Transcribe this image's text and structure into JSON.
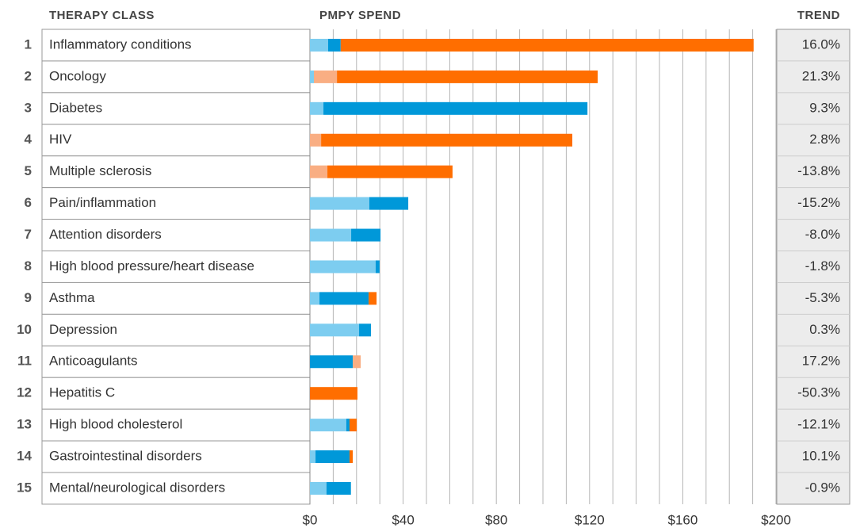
{
  "chart_data": {
    "type": "stacked_barh",
    "column_headers": [
      "THERAPY CLASS",
      "PMPY SPEND",
      "TREND"
    ],
    "ranks": [
      1,
      2,
      3,
      4,
      5,
      6,
      7,
      8,
      9,
      10,
      11,
      12,
      13,
      14,
      15
    ],
    "categories": [
      "Inflammatory conditions",
      "Oncology",
      "Diabetes",
      "HIV",
      "Multiple sclerosis",
      "Pain/inflammation",
      "Attention disorders",
      "High blood pressure/heart disease",
      "Asthma",
      "Depression",
      "Anticoagulants",
      "Hepatitis C",
      "High blood cholesterol",
      "Gastrointestinal disorders",
      "Mental/neurological disorders"
    ],
    "series": [
      {
        "color": "#7dcdf0",
        "values": [
          7.8,
          1.7,
          5.8,
          0,
          0,
          25.5,
          17.7,
          28.2,
          4.1,
          21.1,
          0,
          0,
          15.6,
          2.4,
          7.1
        ]
      },
      {
        "color": "#0098d9",
        "values": [
          5.4,
          0,
          113.3,
          0,
          0,
          16.7,
          12.6,
          1.7,
          21.1,
          5.1,
          18.4,
          0,
          1.4,
          14.6,
          10.5
        ]
      },
      {
        "color": "#f9ae83",
        "values": [
          0,
          9.9,
          0,
          4.8,
          7.5,
          0,
          0,
          0,
          0,
          0,
          3.4,
          0,
          0,
          0,
          0
        ]
      },
      {
        "color": "#ff6e00",
        "values": [
          177.2,
          111.9,
          0,
          107.8,
          53.7,
          0,
          0,
          0,
          3.4,
          0,
          0,
          20.4,
          3.1,
          1.4,
          0
        ]
      }
    ],
    "trend": [
      "16.0%",
      "21.3%",
      "9.3%",
      "2.8%",
      "-13.8%",
      "-15.2%",
      "-8.0%",
      "-1.8%",
      "-5.3%",
      "0.3%",
      "17.2%",
      "-50.3%",
      "-12.1%",
      "10.1%",
      "-0.9%"
    ],
    "xlim": [
      0,
      200
    ],
    "xticks": [
      {
        "value": 0,
        "label": "$0"
      },
      {
        "value": 40,
        "label": "$40"
      },
      {
        "value": 80,
        "label": "$80"
      },
      {
        "value": 120,
        "label": "$120"
      },
      {
        "value": 160,
        "label": "$160"
      },
      {
        "value": 200,
        "label": "$200"
      }
    ],
    "xminorticks": [
      10,
      20,
      30,
      50,
      60,
      70,
      90,
      100,
      110,
      130,
      140,
      150,
      170,
      180,
      190
    ],
    "grid": true
  }
}
